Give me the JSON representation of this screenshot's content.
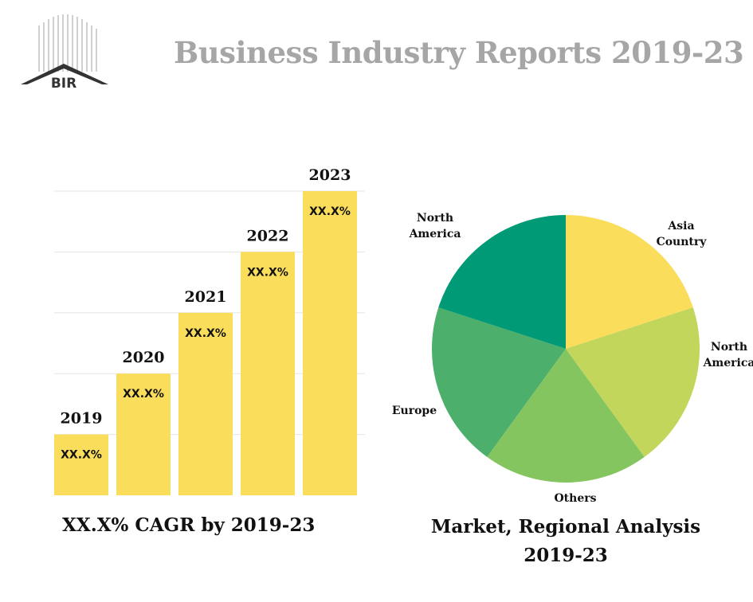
{
  "header": {
    "title": "Business Industry Reports 2019-23",
    "logo_text": "BIR"
  },
  "colors": {
    "title": "#a6a6a6",
    "bar": "#fbdd5c",
    "pie": [
      "#fbdd5c",
      "#c2d65b",
      "#85c560",
      "#4caf6c",
      "#009b76"
    ]
  },
  "captions": {
    "bar": "XX.X%  CAGR by 2019-23",
    "pie_line1": "Market, Regional Analysis",
    "pie_line2": "2019-23"
  },
  "chart_data": [
    {
      "type": "bar",
      "categories": [
        "2019",
        "2020",
        "2021",
        "2022",
        "2023"
      ],
      "values": [
        1,
        2,
        3,
        4,
        5
      ],
      "value_labels": [
        "XX.X%",
        "XX.X%",
        "XX.X%",
        "XX.X%",
        "XX.X%"
      ],
      "grid": true
    },
    {
      "type": "pie",
      "labels": [
        "Asia Country",
        "North America",
        "Others",
        "Europe",
        "North America"
      ],
      "values": [
        20,
        20,
        20,
        20,
        20
      ]
    }
  ]
}
